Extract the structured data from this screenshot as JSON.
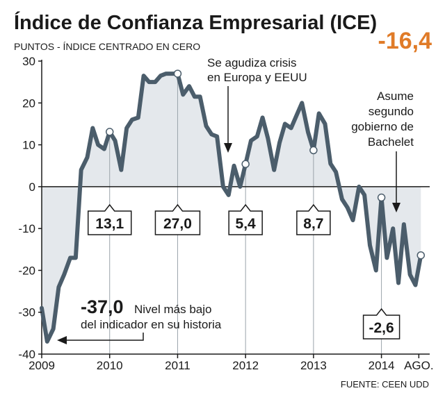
{
  "chart_data": {
    "type": "area",
    "title": "Índice de Confianza Empresarial (ICE)",
    "subtitle": "PUNTOS - ÍNDICE CENTRADO EN CERO",
    "headline_value": "-16,4",
    "source": "FUENTE: CEEN UDD",
    "ylim": [
      -40,
      30
    ],
    "yticks": [
      "30",
      "20",
      "10",
      "0",
      "-10",
      "-20",
      "-30",
      "-40"
    ],
    "xlim": [
      2009.0,
      2014.7
    ],
    "xticks": [
      {
        "x": 2009.0,
        "label": "2009"
      },
      {
        "x": 2010.0,
        "label": "2010"
      },
      {
        "x": 2011.0,
        "label": "2011"
      },
      {
        "x": 2012.0,
        "label": "2012"
      },
      {
        "x": 2013.0,
        "label": "2013"
      },
      {
        "x": 2014.0,
        "label": "2014"
      },
      {
        "x": 2014.55,
        "label": "AGO."
      }
    ],
    "series": [
      {
        "values": [
          [
            2009.0,
            -29
          ],
          [
            2009.08,
            -37
          ],
          [
            2009.17,
            -34
          ],
          [
            2009.25,
            -24
          ],
          [
            2009.33,
            -21
          ],
          [
            2009.42,
            -17
          ],
          [
            2009.5,
            -17
          ],
          [
            2009.58,
            4
          ],
          [
            2009.67,
            7
          ],
          [
            2009.75,
            14
          ],
          [
            2009.83,
            10
          ],
          [
            2009.92,
            9
          ],
          [
            2010.0,
            13.1
          ],
          [
            2010.08,
            11
          ],
          [
            2010.17,
            4
          ],
          [
            2010.25,
            14
          ],
          [
            2010.33,
            16
          ],
          [
            2010.42,
            16.5
          ],
          [
            2010.5,
            26.5
          ],
          [
            2010.58,
            25
          ],
          [
            2010.67,
            25
          ],
          [
            2010.75,
            26.5
          ],
          [
            2010.83,
            27
          ],
          [
            2010.92,
            27
          ],
          [
            2011.0,
            27.0
          ],
          [
            2011.08,
            22
          ],
          [
            2011.17,
            24
          ],
          [
            2011.25,
            21.5
          ],
          [
            2011.33,
            21.5
          ],
          [
            2011.42,
            14.5
          ],
          [
            2011.5,
            12.5
          ],
          [
            2011.58,
            12
          ],
          [
            2011.67,
            0
          ],
          [
            2011.75,
            -2
          ],
          [
            2011.83,
            5
          ],
          [
            2011.92,
            0
          ],
          [
            2012.0,
            5.4
          ],
          [
            2012.08,
            11
          ],
          [
            2012.17,
            12
          ],
          [
            2012.25,
            16.5
          ],
          [
            2012.33,
            11.5
          ],
          [
            2012.42,
            4
          ],
          [
            2012.5,
            10.5
          ],
          [
            2012.58,
            15
          ],
          [
            2012.67,
            14
          ],
          [
            2012.75,
            17
          ],
          [
            2012.83,
            20
          ],
          [
            2012.92,
            13
          ],
          [
            2013.0,
            8.7
          ],
          [
            2013.08,
            17.5
          ],
          [
            2013.17,
            15
          ],
          [
            2013.25,
            5.5
          ],
          [
            2013.33,
            3.5
          ],
          [
            2013.42,
            -3
          ],
          [
            2013.5,
            -5
          ],
          [
            2013.58,
            -8
          ],
          [
            2013.67,
            0
          ],
          [
            2013.75,
            -2
          ],
          [
            2013.83,
            -14
          ],
          [
            2013.92,
            -20
          ],
          [
            2014.0,
            -2.6
          ],
          [
            2014.08,
            -17
          ],
          [
            2014.17,
            -10
          ],
          [
            2014.25,
            -23
          ],
          [
            2014.33,
            -9
          ],
          [
            2014.42,
            -21
          ],
          [
            2014.5,
            -23.5
          ],
          [
            2014.58,
            -16.4
          ]
        ]
      }
    ],
    "callouts": [
      {
        "x": 2010.0,
        "y": 13.1,
        "label": "13,1"
      },
      {
        "x": 2011.0,
        "y": 27.0,
        "label": "27,0"
      },
      {
        "x": 2012.0,
        "y": 5.4,
        "label": "5,4"
      },
      {
        "x": 2013.0,
        "y": 8.7,
        "label": "8,7"
      },
      {
        "x": 2014.0,
        "y": -2.6,
        "label": "-2,6"
      }
    ],
    "annotations": {
      "crisis": [
        "Se agudiza crisis",
        "en Europa y EEUU"
      ],
      "bachelet": [
        "Asume",
        "segundo",
        "gobierno de",
        "Bachelet"
      ],
      "low_value": "-37,0",
      "low_text_1": "Nivel más bajo",
      "low_text_2": "del indicador en su historia"
    },
    "last_point_marker": true,
    "grid": "horizontal zero line only",
    "colors": {
      "line": "#4b5d6b",
      "area_fill": "#e4e8ec",
      "headline": "#e07b28",
      "text": "#1a1a1a"
    }
  }
}
